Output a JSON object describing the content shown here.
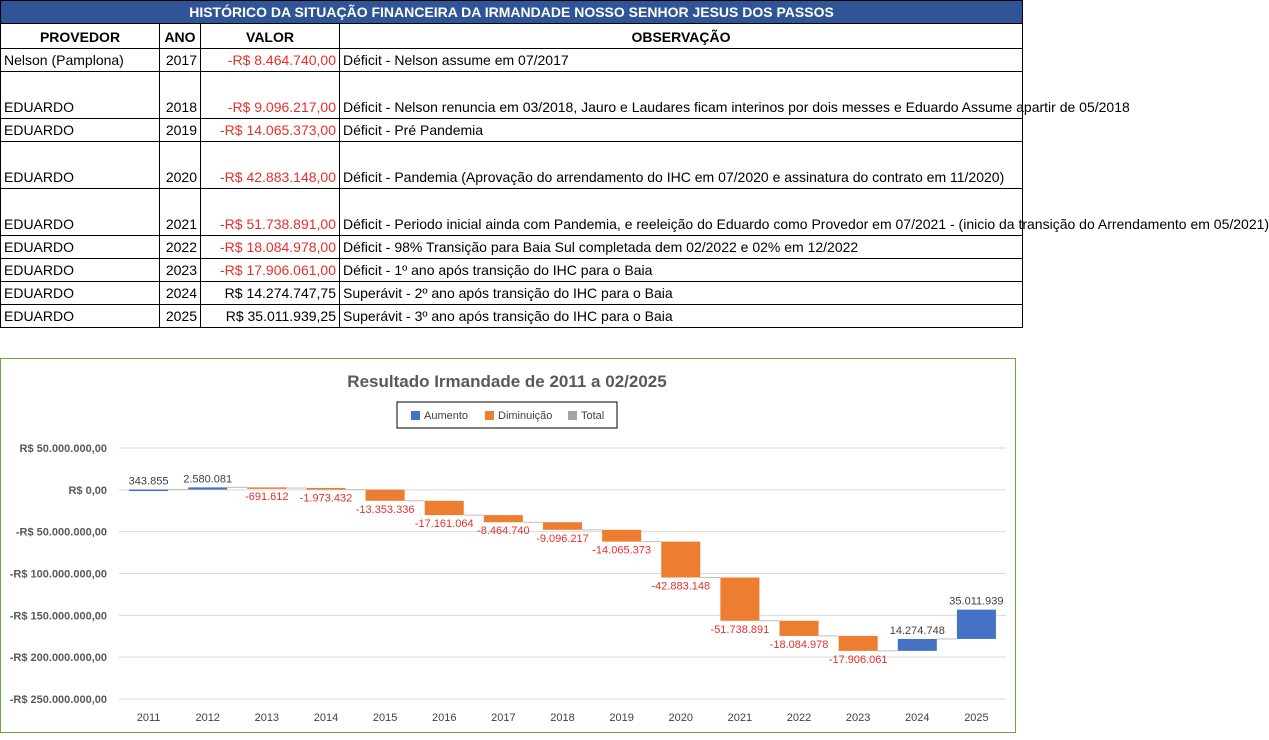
{
  "table": {
    "title": "HISTÓRICO DA SITUAÇÃO FINANCEIRA DA IRMANDADE NOSSO SENHOR JESUS DOS PASSOS",
    "headers": [
      "PROVEDOR",
      "ANO",
      "VALOR",
      "OBSERVAÇÃO"
    ],
    "rows": [
      {
        "provedor": "Nelson (Pamplona)",
        "ano": "2017",
        "valor": "-R$ 8.464.740,00",
        "obs": "Déficit - Nelson assume em 07/2017",
        "neg": true,
        "tall": false
      },
      {
        "provedor": "EDUARDO",
        "ano": "2018",
        "valor": "-R$ 9.096.217,00",
        "obs": "Déficit - Nelson renuncia em 03/2018, Jauro e Laudares ficam interinos por dois messes e Eduardo Assume apartir de 05/2018",
        "neg": true,
        "tall": true
      },
      {
        "provedor": "EDUARDO",
        "ano": "2019",
        "valor": "-R$ 14.065.373,00",
        "obs": "Déficit - Pré Pandemia",
        "neg": true,
        "tall": false
      },
      {
        "provedor": "EDUARDO",
        "ano": "2020",
        "valor": "-R$ 42.883.148,00",
        "obs": "Déficit - Pandemia (Aprovação do arrendamento do IHC em 07/2020 e assinatura do contrato em 11/2020)",
        "neg": true,
        "tall": true
      },
      {
        "provedor": "EDUARDO",
        "ano": "2021",
        "valor": "-R$ 51.738.891,00",
        "obs": "Déficit - Periodo inicial ainda com Pandemia, e reeleição do Eduardo como Provedor em 07/2021 - (inicio da transição do Arrendamento em 05/2021)",
        "neg": true,
        "tall": true
      },
      {
        "provedor": "EDUARDO",
        "ano": "2022",
        "valor": "-R$ 18.084.978,00",
        "obs": "Déficit - 98% Transição para Baia Sul completada dem 02/2022 e 02% em 12/2022",
        "neg": true,
        "tall": false
      },
      {
        "provedor": "EDUARDO",
        "ano": "2023",
        "valor": "-R$ 17.906.061,00",
        "obs": "Déficit - 1º ano após transição do IHC para o Baia",
        "neg": true,
        "tall": false
      },
      {
        "provedor": "EDUARDO",
        "ano": "2024",
        "valor": "R$ 14.274.747,75",
        "obs": "Superávit - 2º ano após transição do IHC para o Baia",
        "neg": false,
        "tall": false
      },
      {
        "provedor": "EDUARDO",
        "ano": "2025",
        "valor": "R$ 35.011.939,25",
        "obs": "Superávit - 3º ano após transição do IHC para o Baia",
        "neg": false,
        "tall": false
      }
    ]
  },
  "chart_data": {
    "type": "bar",
    "subtype": "waterfall",
    "title": "Resultado Irmandade de 2011 a 02/2025",
    "legend": [
      "Aumento",
      "Diminuição",
      "Total"
    ],
    "legend_placement": "top",
    "colors": {
      "Aumento": "#4472c4",
      "Diminuição": "#ed7d31",
      "Total": "#a5a5a5",
      "neg_label": "#e8302a"
    },
    "categories": [
      "2011",
      "2012",
      "2013",
      "2014",
      "2015",
      "2016",
      "2017",
      "2018",
      "2019",
      "2020",
      "2021",
      "2022",
      "2023",
      "2024",
      "2025"
    ],
    "values": [
      343855,
      2580081,
      -691612,
      -1973432,
      -13353336,
      -17161064,
      -8464740,
      -9096217,
      -14065373,
      -42883148,
      -51738891,
      -18084978,
      -17906061,
      14274748,
      35011939
    ],
    "data_labels": [
      "343.855",
      "2.580.081",
      "-691.612",
      "-1.973.432",
      "-13.353.336",
      "-17.161.064",
      "-8.464.740",
      "-9.096.217",
      "-14.065.373",
      "-42.883.148",
      "-51.738.891",
      "-18.084.978",
      "-17.906.061",
      "14.274.748",
      "35.011.939"
    ],
    "ylim": [
      -250000000,
      50000000
    ],
    "yticks": [
      50000000,
      0,
      -50000000,
      -100000000,
      -150000000,
      -200000000,
      -250000000
    ],
    "ytick_labels": [
      "R$ 50.000.000,00",
      "R$ 0,00",
      "-R$ 50.000.000,00",
      "-R$ 100.000.000,00",
      "-R$ 150.000.000,00",
      "-R$ 200.000.000,00",
      "-R$ 250.000.000,00"
    ],
    "grid": true
  }
}
